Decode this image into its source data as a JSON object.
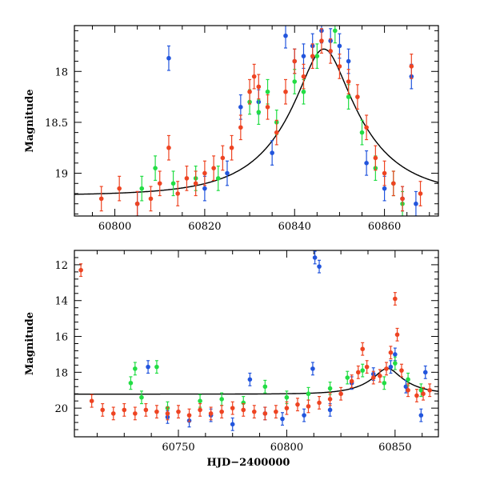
{
  "chart_data": [
    {
      "type": "scatter",
      "title": "",
      "xlabel": "",
      "ylabel": "Magnitude",
      "xlim": [
        60791,
        60872
      ],
      "ylim": [
        19.42,
        17.55
      ],
      "y_inverted": true,
      "x_ticks": [
        60800,
        60820,
        60840,
        60860
      ],
      "x_tick_labels": [
        "60800",
        "60820",
        "60840",
        "60860"
      ],
      "y_ticks": [
        18,
        18.5,
        19
      ],
      "y_tick_labels": [
        "18",
        "18.5",
        "19"
      ],
      "model_curve": {
        "name": "",
        "color": "#000000",
        "peak_x": 60846.5,
        "peak_mag": 17.78,
        "baseline_mag": 19.22,
        "tE": 16.5
      },
      "series": [
        {
          "name": "",
          "color": "#2255dd",
          "x": [
            60805,
            60812,
            60820,
            60825,
            60828,
            60832,
            60835,
            60838,
            60840,
            60842,
            60844,
            60846,
            60848,
            60850,
            60852,
            60856,
            60860,
            60864,
            60866,
            60867
          ],
          "y": [
            19.3,
            17.87,
            19.15,
            19.0,
            18.35,
            18.3,
            18.8,
            17.65,
            17.9,
            17.85,
            17.75,
            17.6,
            17.7,
            17.75,
            17.9,
            18.9,
            19.15,
            19.25,
            18.05,
            19.3
          ]
        },
        {
          "name": "",
          "color": "#22dd44",
          "x": [
            60806,
            60809,
            60813,
            60818,
            60823,
            60830,
            60832,
            60834,
            60836,
            60840,
            60842,
            60845,
            60849,
            60852,
            60855,
            60858,
            60862,
            60864
          ],
          "y": [
            19.15,
            18.95,
            19.1,
            19.05,
            19.05,
            18.3,
            18.4,
            18.2,
            18.5,
            18.1,
            18.2,
            17.85,
            17.6,
            18.25,
            18.6,
            18.95,
            19.1,
            19.3
          ]
        },
        {
          "name": "",
          "color": "#ee4422",
          "x": [
            60797,
            60801,
            60805,
            60808,
            60810,
            60812,
            60814,
            60816,
            60818,
            60820,
            60822,
            60824,
            60826,
            60828,
            60830,
            60831,
            60832,
            60834,
            60836,
            60838,
            60840,
            60842,
            60844,
            60846,
            60848,
            60850,
            60852,
            60854,
            60856,
            60858,
            60860,
            60862,
            60864,
            60866,
            60868
          ],
          "y": [
            19.25,
            19.15,
            19.3,
            19.25,
            19.1,
            18.75,
            19.2,
            19.05,
            19.1,
            19.0,
            18.95,
            18.85,
            18.75,
            18.55,
            18.2,
            18.05,
            18.15,
            18.35,
            18.6,
            18.2,
            17.9,
            18.05,
            17.85,
            17.7,
            17.8,
            17.95,
            18.1,
            18.25,
            18.55,
            18.85,
            19.0,
            19.1,
            19.25,
            17.95,
            19.2
          ]
        }
      ]
    },
    {
      "type": "scatter",
      "title": "",
      "xlabel": "HJD−2400000",
      "ylabel": "Magnitude",
      "xlim": [
        60702,
        60870
      ],
      "ylim": [
        21.6,
        11.2
      ],
      "y_inverted": true,
      "x_ticks": [
        60750,
        60800,
        60850
      ],
      "x_tick_labels": [
        "60750",
        "60800",
        "60850"
      ],
      "y_ticks": [
        12,
        14,
        16,
        18,
        20
      ],
      "y_tick_labels": [
        "12",
        "14",
        "16",
        "18",
        "20"
      ],
      "model_curve": {
        "name": "",
        "color": "#000000",
        "baseline_mag": 19.22,
        "peak_x": 60846.5,
        "peak_mag": 17.78,
        "tE": 16.5
      },
      "series": [
        {
          "name": "",
          "color": "#2255dd",
          "x": [
            60736,
            60745,
            60755,
            60765,
            60775,
            60783,
            60790,
            60798,
            60808,
            60812,
            60813,
            60815,
            60820,
            60830,
            60840,
            60848,
            60850,
            60855,
            60862,
            60864
          ],
          "y": [
            17.7,
            20.5,
            20.7,
            20.4,
            20.9,
            18.4,
            20.3,
            20.6,
            20.4,
            17.8,
            11.6,
            12.1,
            20.1,
            18.6,
            18.1,
            17.7,
            17.0,
            18.8,
            20.4,
            18.0
          ]
        },
        {
          "name": "",
          "color": "#22dd44",
          "x": [
            60728,
            60730,
            60733,
            60740,
            60745,
            60760,
            60770,
            60780,
            60790,
            60800,
            60810,
            60820,
            60828,
            60835,
            60845,
            60850,
            60856,
            60862
          ],
          "y": [
            18.6,
            17.8,
            19.4,
            17.7,
            20.0,
            19.6,
            19.5,
            19.7,
            18.8,
            19.4,
            19.2,
            18.9,
            18.3,
            17.9,
            18.6,
            17.5,
            18.4,
            19.0
          ]
        },
        {
          "name": "",
          "color": "#ee4422",
          "x": [
            60705,
            60710,
            60715,
            60720,
            60725,
            60730,
            60735,
            60740,
            60745,
            60750,
            60755,
            60760,
            60765,
            60770,
            60775,
            60780,
            60785,
            60790,
            60795,
            60800,
            60805,
            60810,
            60815,
            60820,
            60825,
            60830,
            60833,
            60835,
            60837,
            60840,
            60843,
            60846,
            60848,
            60850,
            60851,
            60853,
            60856,
            60860,
            60863,
            60866
          ],
          "y": [
            12.3,
            19.6,
            20.1,
            20.3,
            20.1,
            20.3,
            20.1,
            20.2,
            20.3,
            20.2,
            20.4,
            20.1,
            20.3,
            20.2,
            20.0,
            20.1,
            20.2,
            20.3,
            20.2,
            20.0,
            19.8,
            19.9,
            19.7,
            19.5,
            19.2,
            18.5,
            18.0,
            16.7,
            17.7,
            18.3,
            18.2,
            17.8,
            16.9,
            13.9,
            15.9,
            17.9,
            19.0,
            19.3,
            19.2,
            19.0
          ]
        }
      ]
    }
  ]
}
